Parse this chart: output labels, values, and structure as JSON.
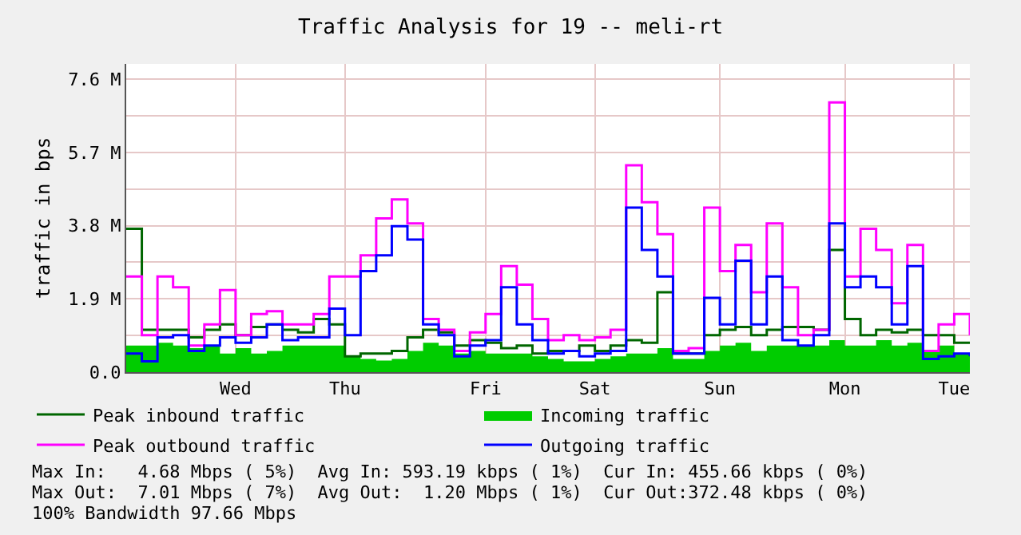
{
  "chart_data": {
    "type": "step",
    "title": "Traffic Analysis for 19 -- meli-rt",
    "ylabel": "traffic in bps",
    "categories": [
      null,
      null,
      null,
      null,
      null,
      null,
      null,
      "Wed",
      null,
      null,
      null,
      null,
      null,
      null,
      "Thu",
      null,
      null,
      null,
      null,
      null,
      null,
      null,
      null,
      "Fri",
      null,
      null,
      null,
      null,
      null,
      null,
      "Sat",
      null,
      null,
      null,
      null,
      null,
      null,
      null,
      "Sun",
      null,
      null,
      null,
      null,
      null,
      null,
      null,
      "Mon",
      null,
      null,
      null,
      null,
      null,
      null,
      "Tue",
      null
    ],
    "ylim": [
      0,
      8.0
    ],
    "yticks": [
      {
        "value": 0,
        "label": "0.0"
      },
      {
        "value": 0.95,
        "label": null
      },
      {
        "value": 1.9,
        "label": "1.9 M"
      },
      {
        "value": 2.85,
        "label": null
      },
      {
        "value": 3.8,
        "label": "3.8 M"
      },
      {
        "value": 4.75,
        "label": null
      },
      {
        "value": 5.7,
        "label": "5.7 M"
      },
      {
        "value": 6.65,
        "label": null
      },
      {
        "value": 7.6,
        "label": "7.6 M"
      }
    ],
    "grid": true,
    "legend": "bottom",
    "series": [
      {
        "name": "Peak inbound traffic",
        "color": "#006600",
        "values": [
          3.72,
          1.1,
          1.1,
          1.1,
          0.9,
          1.1,
          1.24,
          0.96,
          1.17,
          1.24,
          1.1,
          1.03,
          1.38,
          1.24,
          0.41,
          0.48,
          0.48,
          0.55,
          0.9,
          1.1,
          1.03,
          0.69,
          0.83,
          0.76,
          0.62,
          0.69,
          0.48,
          0.55,
          0.55,
          0.69,
          0.55,
          0.69,
          0.83,
          0.76,
          2.07,
          0.48,
          0.48,
          0.96,
          1.1,
          1.17,
          0.96,
          1.1,
          1.17,
          1.17,
          1.1,
          3.17,
          1.38,
          0.96,
          1.1,
          1.03,
          1.1,
          0.96,
          0.96,
          0.76,
          0.76
        ]
      },
      {
        "name": "Incoming traffic",
        "type": "area",
        "color": "#00cc00",
        "values": [
          0.69,
          0.69,
          0.76,
          0.69,
          0.62,
          0.69,
          0.48,
          0.62,
          0.48,
          0.55,
          0.69,
          0.69,
          0.69,
          0.69,
          0.41,
          0.34,
          0.3,
          0.34,
          0.55,
          0.76,
          0.69,
          0.48,
          0.55,
          0.48,
          0.48,
          0.48,
          0.41,
          0.34,
          0.28,
          0.28,
          0.34,
          0.41,
          0.48,
          0.48,
          0.62,
          0.34,
          0.34,
          0.55,
          0.69,
          0.76,
          0.55,
          0.69,
          0.69,
          0.69,
          0.69,
          0.83,
          0.69,
          0.69,
          0.83,
          0.69,
          0.76,
          0.55,
          0.69,
          0.48,
          0.41
        ]
      },
      {
        "name": "Peak outbound traffic",
        "color": "#ff00ff",
        "values": [
          2.48,
          0.96,
          2.48,
          2.2,
          0.69,
          1.24,
          2.13,
          0.96,
          1.51,
          1.58,
          1.24,
          1.24,
          1.51,
          2.48,
          2.48,
          3.03,
          3.99,
          4.48,
          3.86,
          1.38,
          1.1,
          0.55,
          1.03,
          1.51,
          2.75,
          2.27,
          1.38,
          0.83,
          0.96,
          0.83,
          0.9,
          1.1,
          5.37,
          4.41,
          3.58,
          0.55,
          0.62,
          4.27,
          2.62,
          3.3,
          2.07,
          3.86,
          2.2,
          0.96,
          1.1,
          7.0,
          2.48,
          3.72,
          3.17,
          1.79,
          3.3,
          0.55,
          1.24,
          1.51,
          0.96
        ]
      },
      {
        "name": "Outgoing traffic",
        "color": "#0000ff",
        "values": [
          0.48,
          0.28,
          0.9,
          0.96,
          0.55,
          0.69,
          0.9,
          0.76,
          0.9,
          1.24,
          0.83,
          0.9,
          0.9,
          1.65,
          0.96,
          2.62,
          3.03,
          3.79,
          3.44,
          1.24,
          0.96,
          0.41,
          0.69,
          0.83,
          2.2,
          1.24,
          0.83,
          0.48,
          0.55,
          0.41,
          0.48,
          0.55,
          4.27,
          3.17,
          2.48,
          0.48,
          0.48,
          1.93,
          1.24,
          2.89,
          1.24,
          2.48,
          0.83,
          0.69,
          0.96,
          3.86,
          2.2,
          2.48,
          2.2,
          1.24,
          2.75,
          0.34,
          0.41,
          0.48,
          0.41
        ]
      }
    ],
    "annotations": [
      "Max In:   4.68 Mbps ( 5%)  Avg In: 593.19 kbps ( 1%)  Cur In: 455.66 kbps ( 0%)",
      "Max Out:  7.01 Mbps ( 7%)  Avg Out:  1.20 Mbps ( 1%)  Cur Out:372.48 kbps ( 0%)",
      "100% Bandwidth 97.66 Mbps"
    ]
  }
}
